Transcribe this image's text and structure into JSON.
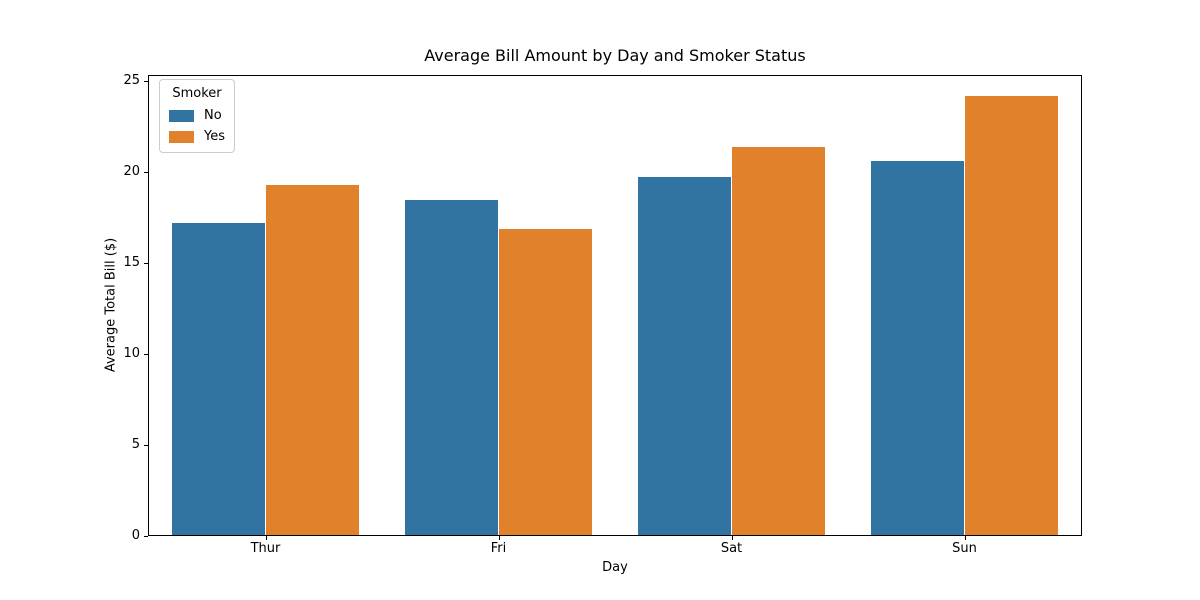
{
  "chart_data": {
    "type": "bar",
    "title": "Average Bill Amount by Day and Smoker Status",
    "xlabel": "Day",
    "ylabel": "Average Total Bill ($)",
    "categories": [
      "Thur",
      "Fri",
      "Sat",
      "Sun"
    ],
    "series": [
      {
        "name": "No",
        "color": "#3274A1",
        "values": [
          17.11,
          18.42,
          19.66,
          20.51
        ]
      },
      {
        "name": "Yes",
        "color": "#E1812C",
        "values": [
          19.19,
          16.81,
          21.28,
          24.12
        ]
      }
    ],
    "legend": {
      "title": "Smoker",
      "position": "upper left",
      "entries": [
        "No",
        "Yes"
      ]
    },
    "ylim": [
      0,
      25.2
    ],
    "yticks": [
      0,
      5,
      10,
      15,
      20,
      25
    ],
    "grid": false,
    "group_total_width_fraction": 0.8,
    "colors": {
      "axes": "#000000",
      "background": "#ffffff",
      "legend_border": "#cccccc"
    }
  }
}
